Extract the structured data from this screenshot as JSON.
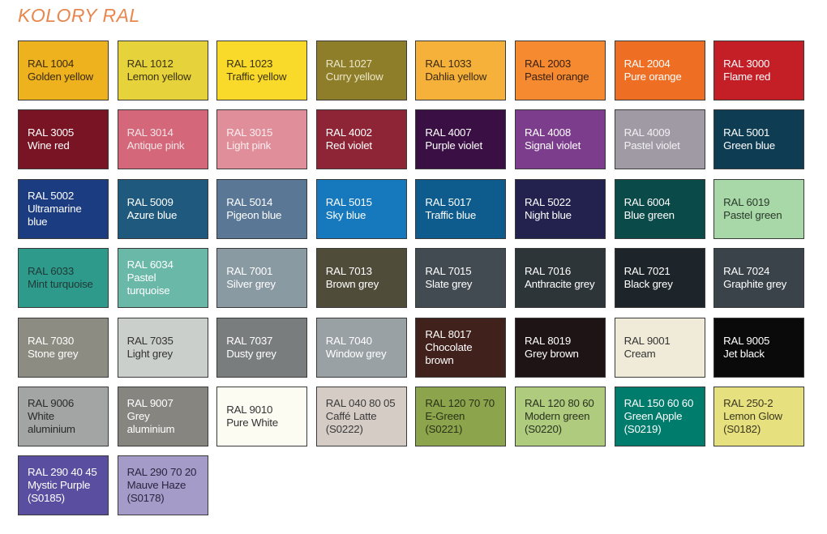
{
  "title": "KOLORY RAL",
  "swatches": [
    {
      "code": "RAL 1004",
      "name": "Golden yellow",
      "color": "#EDB21E",
      "text": "#3a2a10"
    },
    {
      "code": "RAL 1012",
      "name": "Lemon yellow",
      "color": "#E6D23A",
      "text": "#3a3210"
    },
    {
      "code": "RAL 1023",
      "name": "Traffic yellow",
      "color": "#F9DA2A",
      "text": "#3a3210"
    },
    {
      "code": "RAL 1027",
      "name": "Curry yellow",
      "color": "#8E7E2A",
      "text": "#ece6c8"
    },
    {
      "code": "RAL 1033",
      "name": "Dahlia yellow",
      "color": "#F6B13A",
      "text": "#3a2a10"
    },
    {
      "code": "RAL 2003",
      "name": "Pastel orange",
      "color": "#F58A30",
      "text": "#3a2010"
    },
    {
      "code": "RAL 2004",
      "name": "Pure orange",
      "color": "#EE6E24",
      "text": "#ffffff"
    },
    {
      "code": "RAL 3000",
      "name": "Flame red",
      "color": "#C41E26",
      "text": "#ffffff"
    },
    {
      "code": "RAL 3005",
      "name": "Wine red",
      "color": "#781423",
      "text": "#ffffff"
    },
    {
      "code": "RAL 3014",
      "name": "Antique pink",
      "color": "#D4687A",
      "text": "#f4e4e8"
    },
    {
      "code": "RAL 3015",
      "name": "Light pink",
      "color": "#E08E9A",
      "text": "#fbeef0"
    },
    {
      "code": "RAL 4002",
      "name": "Red violet",
      "color": "#8E2537",
      "text": "#ffffff"
    },
    {
      "code": "RAL 4007",
      "name": "Purple violet",
      "color": "#3A0F43",
      "text": "#ffffff"
    },
    {
      "code": "RAL 4008",
      "name": "Signal violet",
      "color": "#7C3D8C",
      "text": "#ffffff"
    },
    {
      "code": "RAL 4009",
      "name": "Pastel violet",
      "color": "#A09AA5",
      "text": "#f2f0f4"
    },
    {
      "code": "RAL 5001",
      "name": "Green blue",
      "color": "#0E3C53",
      "text": "#ffffff"
    },
    {
      "code": "RAL 5002",
      "name": "Ultramarine\nblue",
      "color": "#1C3C82",
      "text": "#ffffff"
    },
    {
      "code": "RAL 5009",
      "name": "Azure blue",
      "color": "#1F5A7E",
      "text": "#ffffff"
    },
    {
      "code": "RAL 5014",
      "name": "Pigeon blue",
      "color": "#5A7896",
      "text": "#ffffff"
    },
    {
      "code": "RAL 5015",
      "name": "Sky blue",
      "color": "#1779BD",
      "text": "#ffffff"
    },
    {
      "code": "RAL 5017",
      "name": "Traffic blue",
      "color": "#0E5C8E",
      "text": "#ffffff"
    },
    {
      "code": "RAL 5022",
      "name": "Night blue",
      "color": "#23224F",
      "text": "#ffffff"
    },
    {
      "code": "RAL 6004",
      "name": "Blue green",
      "color": "#0A4A48",
      "text": "#ffffff"
    },
    {
      "code": "RAL 6019",
      "name": "Pastel green",
      "color": "#A9D8A8",
      "text": "#2a3a2a"
    },
    {
      "code": "RAL 6033",
      "name": "Mint turquoise",
      "color": "#2E9A8C",
      "text": "#203a36"
    },
    {
      "code": "RAL 6034",
      "name": "Pastel turquoise",
      "color": "#69B8A8",
      "text": "#ffffff"
    },
    {
      "code": "RAL 7001",
      "name": "Silver grey",
      "color": "#8A9AA3",
      "text": "#ffffff"
    },
    {
      "code": "RAL 7013",
      "name": "Brown grey",
      "color": "#504C3A",
      "text": "#ffffff"
    },
    {
      "code": "RAL 7015",
      "name": "Slate grey",
      "color": "#434B52",
      "text": "#ffffff"
    },
    {
      "code": "RAL 7016",
      "name": "Anthracite grey",
      "color": "#2E3538",
      "text": "#ffffff"
    },
    {
      "code": "RAL 7021",
      "name": "Black grey",
      "color": "#1E252A",
      "text": "#ffffff"
    },
    {
      "code": "RAL 7024",
      "name": "Graphite grey",
      "color": "#3B434A",
      "text": "#ffffff"
    },
    {
      "code": "RAL 7030",
      "name": "Stone grey",
      "color": "#8C8C82",
      "text": "#ffffff"
    },
    {
      "code": "RAL 7035",
      "name": "Light grey",
      "color": "#CBCFCB",
      "text": "#333333"
    },
    {
      "code": "RAL 7037",
      "name": "Dusty grey",
      "color": "#7A7D7E",
      "text": "#ffffff"
    },
    {
      "code": "RAL 7040",
      "name": "Window grey",
      "color": "#9AA1A5",
      "text": "#ffffff"
    },
    {
      "code": "RAL 8017",
      "name": "Chocolate\nbrown",
      "color": "#40211B",
      "text": "#ffffff"
    },
    {
      "code": "RAL 8019",
      "name": "Grey brown",
      "color": "#1E1416",
      "text": "#ffffff"
    },
    {
      "code": "RAL 9001",
      "name": "Cream",
      "color": "#F0EBD8",
      "text": "#333333"
    },
    {
      "code": "RAL 9005",
      "name": "Jet black",
      "color": "#0A0A0A",
      "text": "#ffffff"
    },
    {
      "code": "RAL 9006",
      "name": "White\naluminium",
      "color": "#A3A5A5",
      "text": "#2a2a2a"
    },
    {
      "code": "RAL 9007",
      "name": "Grey aluminium",
      "color": "#868580",
      "text": "#ffffff"
    },
    {
      "code": "RAL 9010",
      "name": "Pure White",
      "color": "#FDFCF3",
      "text": "#333333"
    },
    {
      "code": "RAL 040 80 05",
      "name": "Caffé Latte\n(S0222)",
      "color": "#D6CCC6",
      "text": "#3a3a3a"
    },
    {
      "code": "RAL 120 70 70",
      "name": "E-Green\n(S0221)",
      "color": "#8CA54C",
      "text": "#2a3218"
    },
    {
      "code": "RAL 120 80 60",
      "name": "Modern green\n(S0220)",
      "color": "#AECB7E",
      "text": "#2a3220"
    },
    {
      "code": "RAL 150 60 60",
      "name": "Green Apple\n(S0219)",
      "color": "#007C6C",
      "text": "#ffffff"
    },
    {
      "code": "RAL 250-2",
      "name": "Lemon Glow\n(S0182)",
      "color": "#E7E07E",
      "text": "#3a3820"
    },
    {
      "code": "RAL 290 40 45",
      "name": "Mystic Purple\n(S0185)",
      "color": "#5A4EA0",
      "text": "#ffffff"
    },
    {
      "code": "RAL 290 70 20",
      "name": "Mauve Haze\n(S0178)",
      "color": "#A49BC8",
      "text": "#2a2640"
    }
  ]
}
